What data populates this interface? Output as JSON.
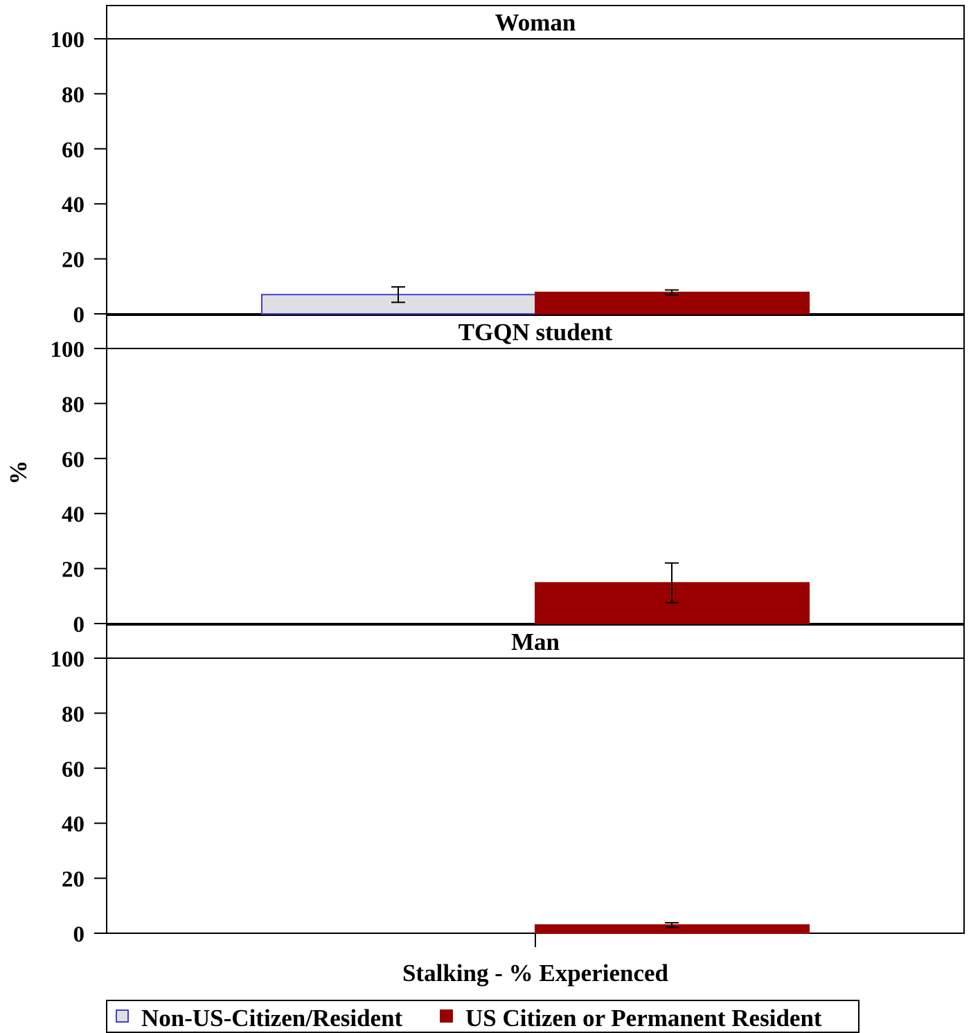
{
  "chart_data": {
    "type": "bar",
    "ylabel": "%",
    "xlabel": "Stalking - % Experienced",
    "ylim": [
      0,
      100
    ],
    "yticks": [
      "0",
      "20",
      "40",
      "60",
      "80",
      "100"
    ],
    "grid": false,
    "legend_position": "bottom",
    "series": [
      {
        "name": "Non-US-Citizen/Resident",
        "color": "#dde0e3",
        "stroke": "#4040d0"
      },
      {
        "name": "US Citizen or Permanent Resident",
        "color": "#990000",
        "stroke": "#990000"
      }
    ],
    "panels": [
      {
        "title": "Woman",
        "bars": [
          {
            "series": 0,
            "value": 7.0,
            "err_low": 4.2,
            "err_high": 9.8
          },
          {
            "series": 1,
            "value": 7.8,
            "err_low": 6.9,
            "err_high": 8.7
          }
        ]
      },
      {
        "title": "TGQN student",
        "bars": [
          {
            "series": 0,
            "value": null,
            "err_low": null,
            "err_high": null
          },
          {
            "series": 1,
            "value": 14.8,
            "err_low": 7.6,
            "err_high": 22.0
          }
        ]
      },
      {
        "title": "Man",
        "bars": [
          {
            "series": 0,
            "value": null,
            "err_low": null,
            "err_high": null
          },
          {
            "series": 1,
            "value": 3.0,
            "err_low": 2.2,
            "err_high": 3.8
          }
        ]
      }
    ]
  }
}
